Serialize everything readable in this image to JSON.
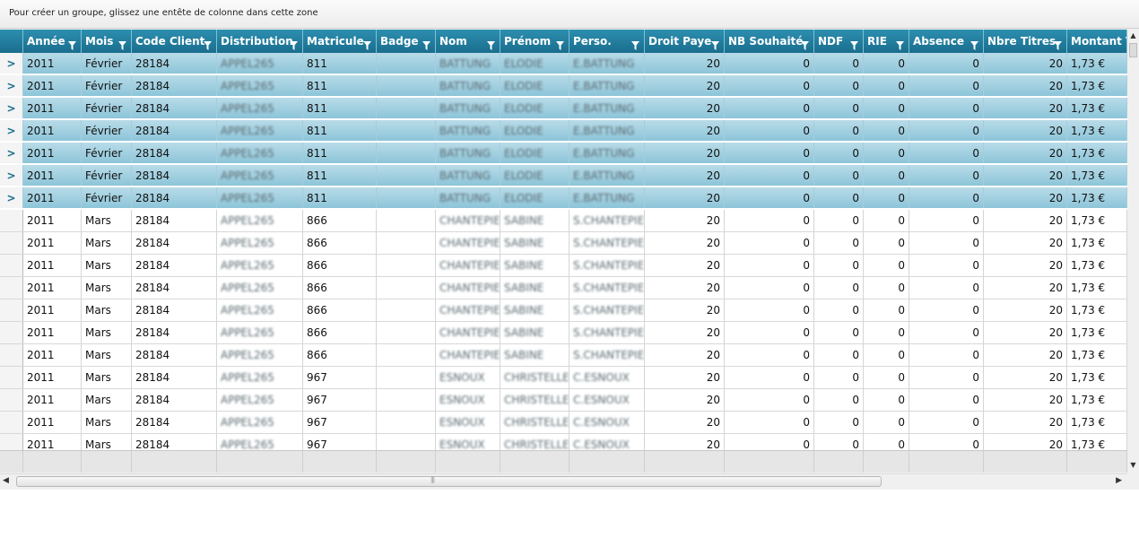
{
  "group_panel": {
    "hint": "Pour créer un groupe, glissez une entête de colonne dans cette zone"
  },
  "colors": {
    "header": "#1f7a9b",
    "selected_row": "#9fd0e1",
    "accent": "#1a6d8d"
  },
  "columns": [
    {
      "key": "annee",
      "label": "Année",
      "w": 65,
      "num": false
    },
    {
      "key": "mois",
      "label": "Mois",
      "w": 56,
      "num": false
    },
    {
      "key": "code",
      "label": "Code Client",
      "w": 95,
      "num": false
    },
    {
      "key": "distribution",
      "label": "Distribution",
      "w": 96,
      "num": false
    },
    {
      "key": "matricule",
      "label": "Matricule",
      "w": 82,
      "num": false
    },
    {
      "key": "badge",
      "label": "Badge",
      "w": 66,
      "num": false
    },
    {
      "key": "nom",
      "label": "Nom",
      "w": 72,
      "num": false
    },
    {
      "key": "prenom",
      "label": "Prénom",
      "w": 77,
      "num": false
    },
    {
      "key": "perso",
      "label": "Perso.",
      "w": 84,
      "num": false
    },
    {
      "key": "droit",
      "label": "Droit Paye",
      "w": 89,
      "num": true
    },
    {
      "key": "nbsouhaite",
      "label": "NB Souhaité",
      "w": 100,
      "num": true
    },
    {
      "key": "ndf",
      "label": "NDF",
      "w": 55,
      "num": true
    },
    {
      "key": "rie",
      "label": "RIE",
      "w": 51,
      "num": true
    },
    {
      "key": "absence",
      "label": "Absence",
      "w": 83,
      "num": true
    },
    {
      "key": "nbretitres",
      "label": "Nbre Titres",
      "w": 93,
      "num": true
    },
    {
      "key": "montant",
      "label": "Montant To",
      "w": 67,
      "num": false
    }
  ],
  "rows": [
    {
      "selected": true,
      "annee": "2011",
      "mois": "Février",
      "code": "28184",
      "distribution": "APPEL265",
      "matricule": "811",
      "badge": "",
      "nom": "BATTUNG",
      "prenom": "ELODIE",
      "perso": "E.BATTUNG",
      "droit": "20",
      "nbsouhaite": "0",
      "ndf": "0",
      "rie": "0",
      "absence": "0",
      "nbretitres": "20",
      "montant": "1,73 €"
    },
    {
      "selected": true,
      "annee": "2011",
      "mois": "Février",
      "code": "28184",
      "distribution": "APPEL265",
      "matricule": "811",
      "badge": "",
      "nom": "BATTUNG",
      "prenom": "ELODIE",
      "perso": "E.BATTUNG",
      "droit": "20",
      "nbsouhaite": "0",
      "ndf": "0",
      "rie": "0",
      "absence": "0",
      "nbretitres": "20",
      "montant": "1,73 €"
    },
    {
      "selected": true,
      "annee": "2011",
      "mois": "Février",
      "code": "28184",
      "distribution": "APPEL265",
      "matricule": "811",
      "badge": "",
      "nom": "BATTUNG",
      "prenom": "ELODIE",
      "perso": "E.BATTUNG",
      "droit": "20",
      "nbsouhaite": "0",
      "ndf": "0",
      "rie": "0",
      "absence": "0",
      "nbretitres": "20",
      "montant": "1,73 €"
    },
    {
      "selected": true,
      "annee": "2011",
      "mois": "Février",
      "code": "28184",
      "distribution": "APPEL265",
      "matricule": "811",
      "badge": "",
      "nom": "BATTUNG",
      "prenom": "ELODIE",
      "perso": "E.BATTUNG",
      "droit": "20",
      "nbsouhaite": "0",
      "ndf": "0",
      "rie": "0",
      "absence": "0",
      "nbretitres": "20",
      "montant": "1,73 €"
    },
    {
      "selected": true,
      "annee": "2011",
      "mois": "Février",
      "code": "28184",
      "distribution": "APPEL265",
      "matricule": "811",
      "badge": "",
      "nom": "BATTUNG",
      "prenom": "ELODIE",
      "perso": "E.BATTUNG",
      "droit": "20",
      "nbsouhaite": "0",
      "ndf": "0",
      "rie": "0",
      "absence": "0",
      "nbretitres": "20",
      "montant": "1,73 €"
    },
    {
      "selected": true,
      "annee": "2011",
      "mois": "Février",
      "code": "28184",
      "distribution": "APPEL265",
      "matricule": "811",
      "badge": "",
      "nom": "BATTUNG",
      "prenom": "ELODIE",
      "perso": "E.BATTUNG",
      "droit": "20",
      "nbsouhaite": "0",
      "ndf": "0",
      "rie": "0",
      "absence": "0",
      "nbretitres": "20",
      "montant": "1,73 €"
    },
    {
      "selected": true,
      "annee": "2011",
      "mois": "Février",
      "code": "28184",
      "distribution": "APPEL265",
      "matricule": "811",
      "badge": "",
      "nom": "BATTUNG",
      "prenom": "ELODIE",
      "perso": "E.BATTUNG",
      "droit": "20",
      "nbsouhaite": "0",
      "ndf": "0",
      "rie": "0",
      "absence": "0",
      "nbretitres": "20",
      "montant": "1,73 €"
    },
    {
      "selected": false,
      "annee": "2011",
      "mois": "Mars",
      "code": "28184",
      "distribution": "APPEL265",
      "matricule": "866",
      "badge": "",
      "nom": "CHANTEPIE",
      "prenom": "SABINE",
      "perso": "S.CHANTEPIE",
      "droit": "20",
      "nbsouhaite": "0",
      "ndf": "0",
      "rie": "0",
      "absence": "0",
      "nbretitres": "20",
      "montant": "1,73 €"
    },
    {
      "selected": false,
      "annee": "2011",
      "mois": "Mars",
      "code": "28184",
      "distribution": "APPEL265",
      "matricule": "866",
      "badge": "",
      "nom": "CHANTEPIE",
      "prenom": "SABINE",
      "perso": "S.CHANTEPIE",
      "droit": "20",
      "nbsouhaite": "0",
      "ndf": "0",
      "rie": "0",
      "absence": "0",
      "nbretitres": "20",
      "montant": "1,73 €"
    },
    {
      "selected": false,
      "annee": "2011",
      "mois": "Mars",
      "code": "28184",
      "distribution": "APPEL265",
      "matricule": "866",
      "badge": "",
      "nom": "CHANTEPIE",
      "prenom": "SABINE",
      "perso": "S.CHANTEPIE",
      "droit": "20",
      "nbsouhaite": "0",
      "ndf": "0",
      "rie": "0",
      "absence": "0",
      "nbretitres": "20",
      "montant": "1,73 €"
    },
    {
      "selected": false,
      "annee": "2011",
      "mois": "Mars",
      "code": "28184",
      "distribution": "APPEL265",
      "matricule": "866",
      "badge": "",
      "nom": "CHANTEPIE",
      "prenom": "SABINE",
      "perso": "S.CHANTEPIE",
      "droit": "20",
      "nbsouhaite": "0",
      "ndf": "0",
      "rie": "0",
      "absence": "0",
      "nbretitres": "20",
      "montant": "1,73 €"
    },
    {
      "selected": false,
      "annee": "2011",
      "mois": "Mars",
      "code": "28184",
      "distribution": "APPEL265",
      "matricule": "866",
      "badge": "",
      "nom": "CHANTEPIE",
      "prenom": "SABINE",
      "perso": "S.CHANTEPIE",
      "droit": "20",
      "nbsouhaite": "0",
      "ndf": "0",
      "rie": "0",
      "absence": "0",
      "nbretitres": "20",
      "montant": "1,73 €"
    },
    {
      "selected": false,
      "annee": "2011",
      "mois": "Mars",
      "code": "28184",
      "distribution": "APPEL265",
      "matricule": "866",
      "badge": "",
      "nom": "CHANTEPIE",
      "prenom": "SABINE",
      "perso": "S.CHANTEPIE",
      "droit": "20",
      "nbsouhaite": "0",
      "ndf": "0",
      "rie": "0",
      "absence": "0",
      "nbretitres": "20",
      "montant": "1,73 €"
    },
    {
      "selected": false,
      "annee": "2011",
      "mois": "Mars",
      "code": "28184",
      "distribution": "APPEL265",
      "matricule": "866",
      "badge": "",
      "nom": "CHANTEPIE",
      "prenom": "SABINE",
      "perso": "S.CHANTEPIE",
      "droit": "20",
      "nbsouhaite": "0",
      "ndf": "0",
      "rie": "0",
      "absence": "0",
      "nbretitres": "20",
      "montant": "1,73 €"
    },
    {
      "selected": false,
      "annee": "2011",
      "mois": "Mars",
      "code": "28184",
      "distribution": "APPEL265",
      "matricule": "967",
      "badge": "",
      "nom": "ESNOUX",
      "prenom": "CHRISTELLE",
      "perso": "C.ESNOUX",
      "droit": "20",
      "nbsouhaite": "0",
      "ndf": "0",
      "rie": "0",
      "absence": "0",
      "nbretitres": "20",
      "montant": "1,73 €"
    },
    {
      "selected": false,
      "annee": "2011",
      "mois": "Mars",
      "code": "28184",
      "distribution": "APPEL265",
      "matricule": "967",
      "badge": "",
      "nom": "ESNOUX",
      "prenom": "CHRISTELLE",
      "perso": "C.ESNOUX",
      "droit": "20",
      "nbsouhaite": "0",
      "ndf": "0",
      "rie": "0",
      "absence": "0",
      "nbretitres": "20",
      "montant": "1,73 €"
    },
    {
      "selected": false,
      "annee": "2011",
      "mois": "Mars",
      "code": "28184",
      "distribution": "APPEL265",
      "matricule": "967",
      "badge": "",
      "nom": "ESNOUX",
      "prenom": "CHRISTELLE",
      "perso": "C.ESNOUX",
      "droit": "20",
      "nbsouhaite": "0",
      "ndf": "0",
      "rie": "0",
      "absence": "0",
      "nbretitres": "20",
      "montant": "1,73 €"
    },
    {
      "selected": false,
      "annee": "2011",
      "mois": "Mars",
      "code": "28184",
      "distribution": "APPEL265",
      "matricule": "967",
      "badge": "",
      "nom": "ESNOUX",
      "prenom": "CHRISTELLE",
      "perso": "C.ESNOUX",
      "droit": "20",
      "nbsouhaite": "0",
      "ndf": "0",
      "rie": "0",
      "absence": "0",
      "nbretitres": "20",
      "montant": "1,73 €"
    }
  ]
}
